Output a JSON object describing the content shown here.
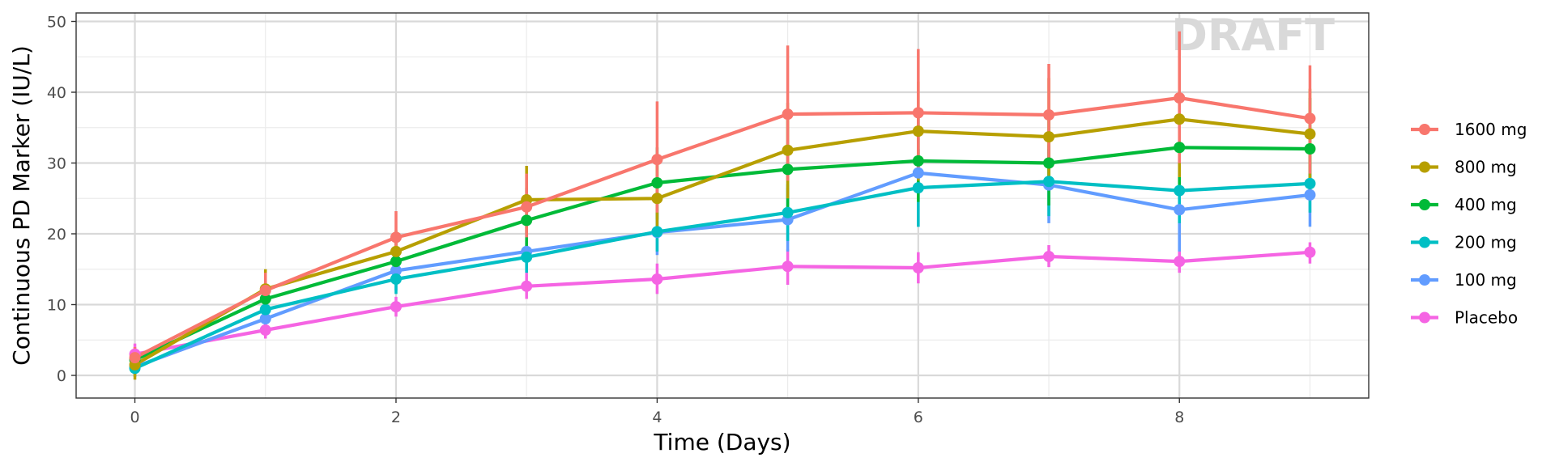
{
  "chart_data": {
    "type": "line",
    "title": "",
    "xlabel": "Time (Days)",
    "ylabel": "Continuous PD Marker (IU/L)",
    "watermark": "DRAFT",
    "xlim": [
      -0.45,
      9.45
    ],
    "ylim": [
      -3.2,
      51.2
    ],
    "x_ticks": [
      0,
      2,
      4,
      6,
      8
    ],
    "y_ticks": [
      0,
      10,
      20,
      30,
      40,
      50
    ],
    "x": [
      0,
      1,
      2,
      3,
      4,
      5,
      6,
      7,
      8,
      9
    ],
    "grid": true,
    "legend_position": "right",
    "series": [
      {
        "name": "1600 mg",
        "color": "#F8766D",
        "values": [
          2.5,
          12.0,
          19.5,
          23.8,
          30.5,
          36.9,
          37.1,
          36.8,
          39.2,
          36.3
        ],
        "lower": [
          1.0,
          9.5,
          15.8,
          19.5,
          23.0,
          27.5,
          28.5,
          30.0,
          30.0,
          28.5
        ],
        "upper": [
          4.0,
          14.5,
          23.2,
          28.5,
          38.7,
          46.6,
          46.1,
          44.0,
          48.6,
          43.8
        ]
      },
      {
        "name": "800 mg",
        "color": "#B79F00",
        "values": [
          1.5,
          12.2,
          17.5,
          24.8,
          25.0,
          31.8,
          34.5,
          33.7,
          36.2,
          34.1
        ],
        "lower": [
          -0.6,
          9.5,
          14.5,
          20.0,
          20.0,
          25.0,
          27.5,
          27.0,
          28.0,
          27.5
        ],
        "upper": [
          3.5,
          15.0,
          20.5,
          29.6,
          30.0,
          38.5,
          41.5,
          42.0,
          45.5,
          40.5
        ]
      },
      {
        "name": "400 mg",
        "color": "#00BA38",
        "values": [
          2.2,
          10.8,
          16.1,
          21.9,
          27.2,
          29.1,
          30.3,
          30.0,
          32.2,
          32.0
        ],
        "lower": [
          0.8,
          8.5,
          13.5,
          18.0,
          22.0,
          22.5,
          24.5,
          24.0,
          26.0,
          26.0
        ],
        "upper": [
          3.6,
          13.0,
          19.0,
          26.5,
          32.2,
          36.5,
          37.0,
          36.5,
          38.5,
          39.2
        ]
      },
      {
        "name": "200 mg",
        "color": "#00BFC4",
        "values": [
          1.0,
          9.3,
          13.6,
          16.7,
          20.3,
          23.0,
          26.5,
          27.4,
          26.1,
          27.1
        ],
        "lower": [
          -0.2,
          7.5,
          11.5,
          14.5,
          17.5,
          19.0,
          21.0,
          22.5,
          21.5,
          23.0
        ],
        "upper": [
          2.2,
          11.0,
          16.0,
          19.0,
          23.0,
          27.0,
          32.0,
          32.0,
          31.0,
          31.0
        ]
      },
      {
        "name": "100 mg",
        "color": "#619CFF",
        "values": [
          1.2,
          8.0,
          14.8,
          17.5,
          20.2,
          22.0,
          28.6,
          26.9,
          23.4,
          25.5
        ],
        "lower": [
          0.0,
          6.0,
          12.0,
          14.5,
          17.0,
          17.5,
          21.0,
          21.5,
          17.5,
          21.0
        ],
        "upper": [
          2.6,
          10.0,
          17.5,
          21.0,
          23.5,
          26.5,
          36.5,
          32.5,
          29.0,
          30.0
        ]
      },
      {
        "name": "Placebo",
        "color": "#F564E3",
        "values": [
          3.0,
          6.4,
          9.7,
          12.6,
          13.6,
          15.4,
          15.2,
          16.8,
          16.1,
          17.4
        ],
        "lower": [
          1.5,
          5.2,
          8.3,
          10.8,
          11.5,
          12.8,
          13.0,
          15.3,
          14.5,
          15.8
        ],
        "upper": [
          4.5,
          7.6,
          11.1,
          14.5,
          15.8,
          17.8,
          17.4,
          18.4,
          17.8,
          18.8
        ]
      }
    ]
  }
}
